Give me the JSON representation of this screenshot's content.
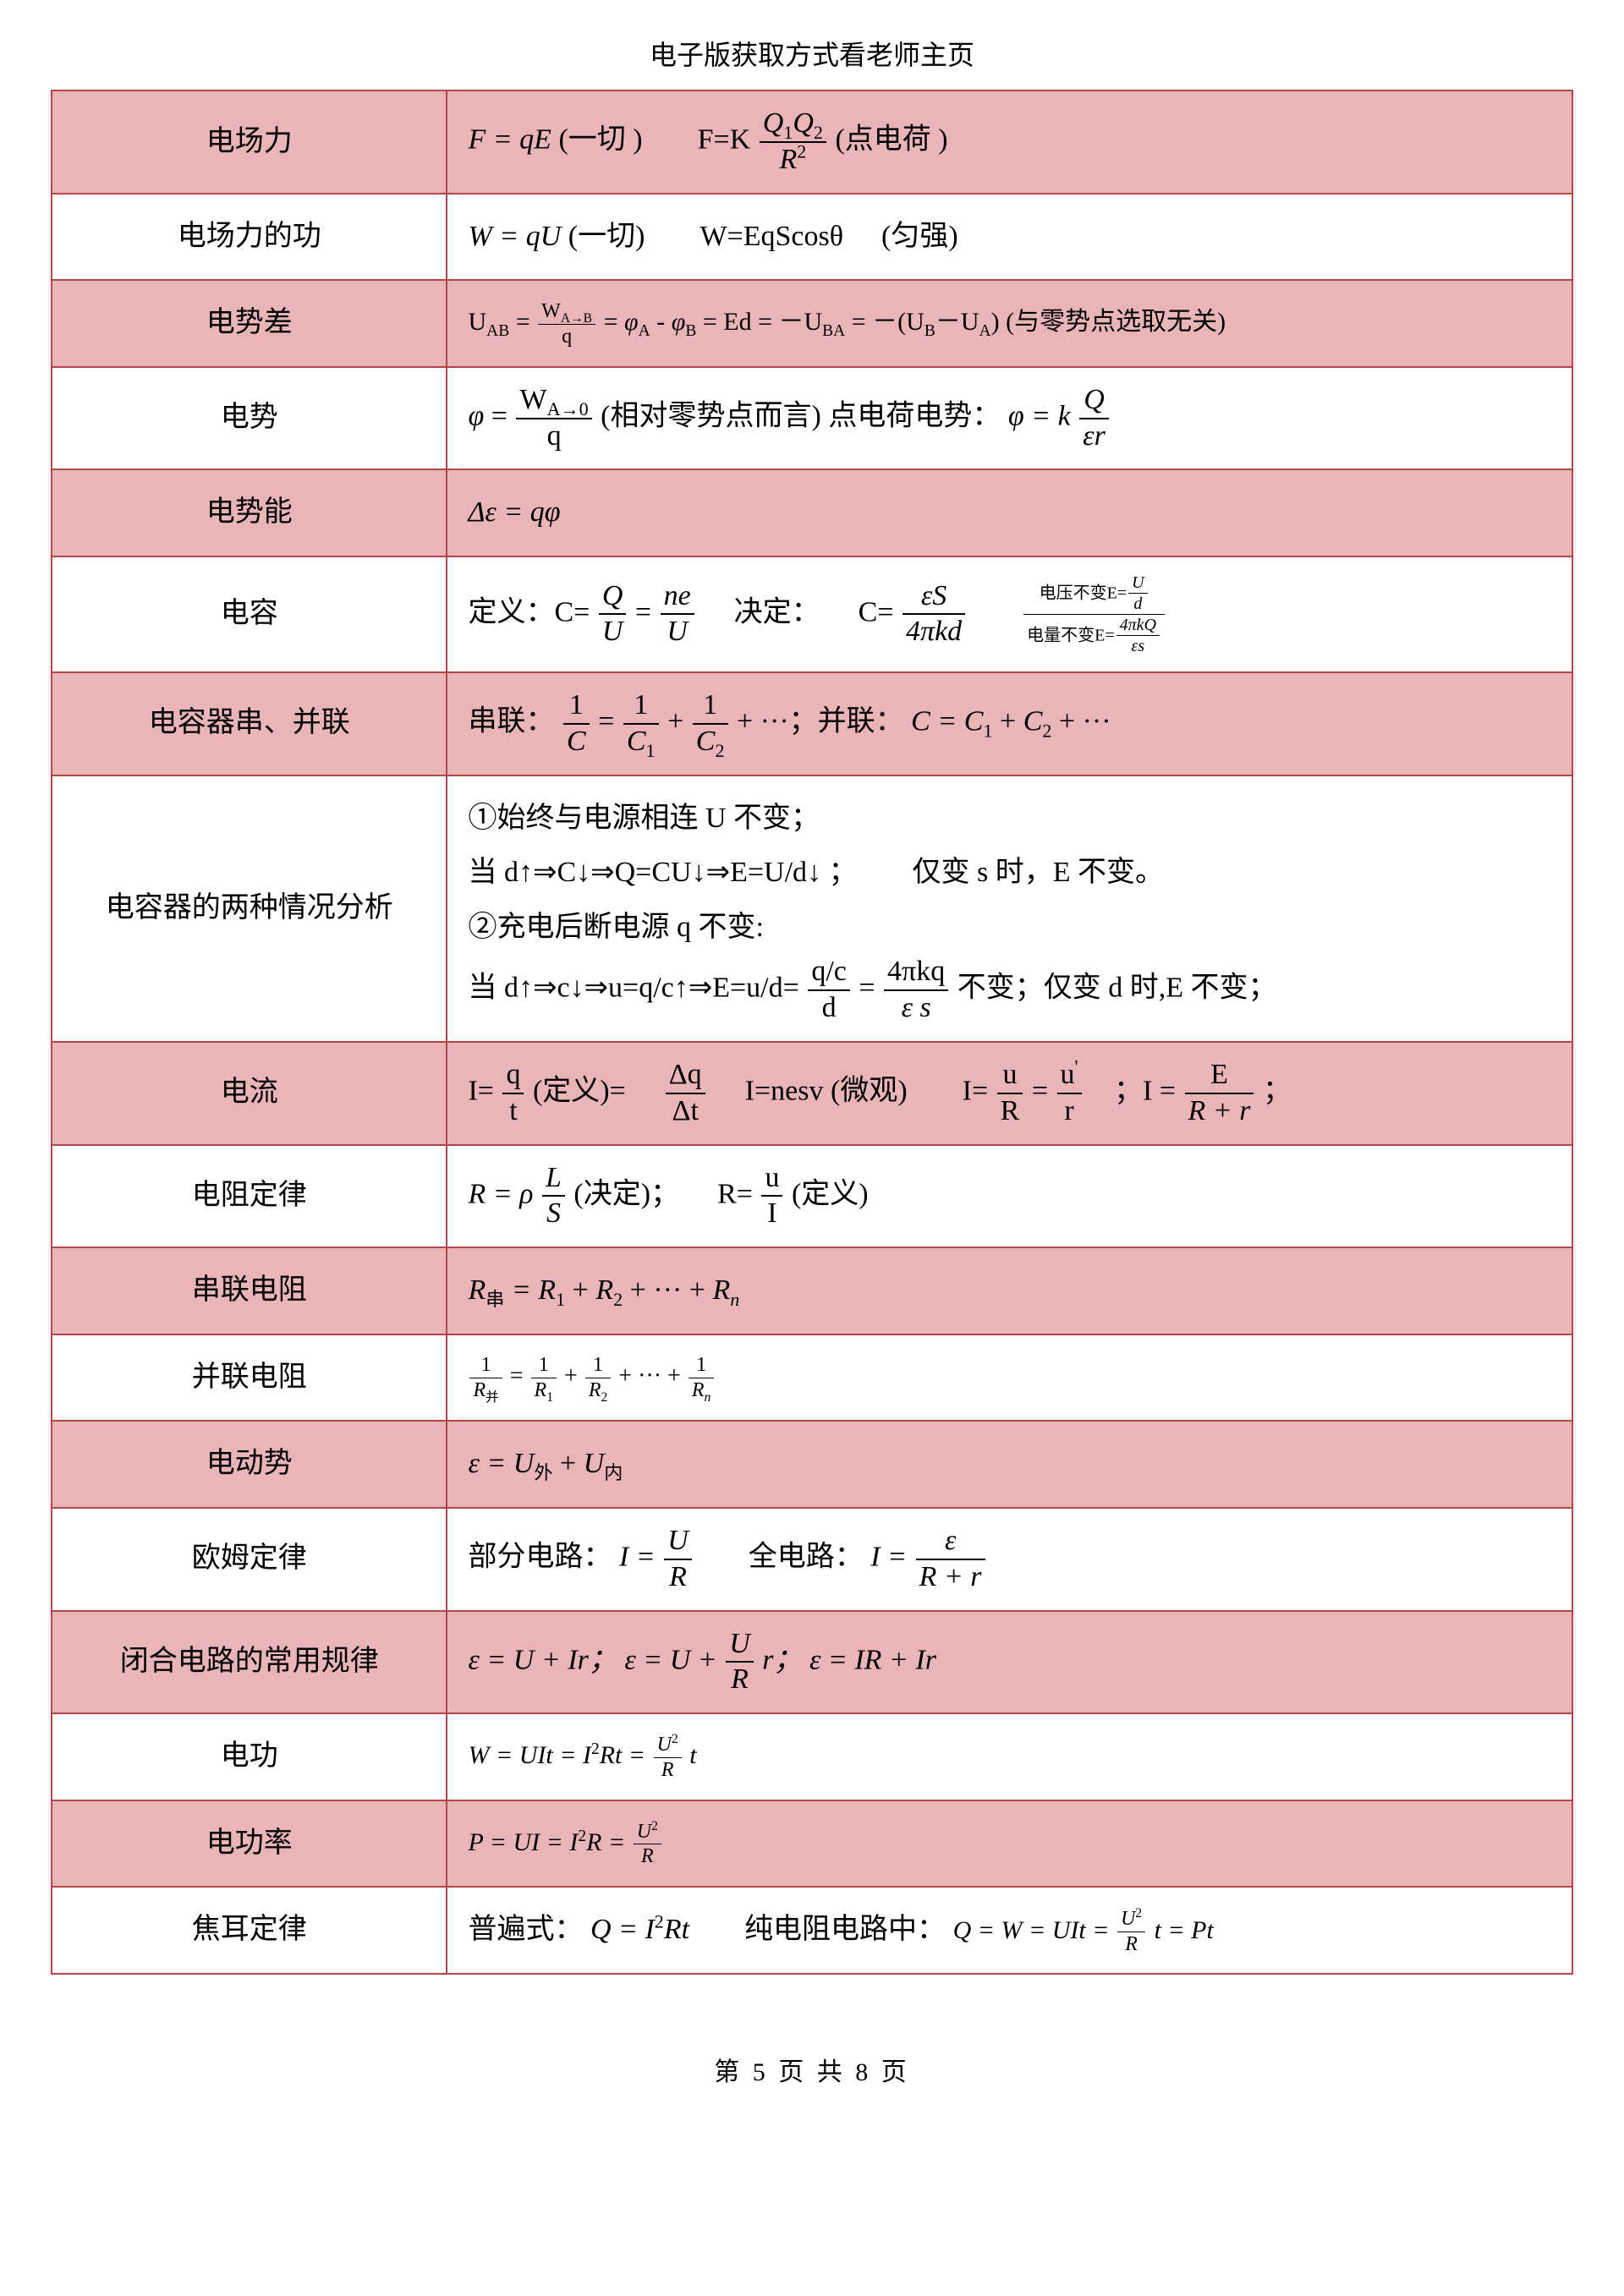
{
  "header_note": "电子版获取方式看老师主页",
  "page_footer": "第 5 页 共 8 页",
  "table": {
    "border_color": "#b1474a",
    "pink_bg": "#e9b5b7",
    "white_bg": "#ffffff",
    "rows": [
      {
        "label": "电场力",
        "shade": "pink"
      },
      {
        "label": "电场力的功",
        "shade": "white"
      },
      {
        "label": "电势差",
        "shade": "pink"
      },
      {
        "label": "电势",
        "shade": "white"
      },
      {
        "label": "电势能",
        "shade": "pink"
      },
      {
        "label": "电容",
        "shade": "white"
      },
      {
        "label": "电容器串、并联",
        "shade": "pink"
      },
      {
        "label": "电容器的两种情况分析",
        "shade": "white"
      },
      {
        "label": "电流",
        "shade": "pink"
      },
      {
        "label": "电阻定律",
        "shade": "white"
      },
      {
        "label": "串联电阻",
        "shade": "pink"
      },
      {
        "label": "并联电阻",
        "shade": "white"
      },
      {
        "label": "电动势",
        "shade": "pink"
      },
      {
        "label": "欧姆定律",
        "shade": "white"
      },
      {
        "label": "闭合电路的常用规律",
        "shade": "pink"
      },
      {
        "label": "电功",
        "shade": "white"
      },
      {
        "label": "电功率",
        "shade": "pink"
      },
      {
        "label": "焦耳定律",
        "shade": "white"
      }
    ]
  },
  "formulas": {
    "dianchangLi_1": "F = qE",
    "dianchangLi_1_note": "(一切  )",
    "dianchangLi_2_prefix": "F=K",
    "dianchangLi_2_num": "Q₁Q₂",
    "dianchangLi_2_den": "R²",
    "dianchangLi_2_note": "(点电荷  )",
    "gong_1": "W = qU",
    "gong_1_note": "(一切)",
    "gong_2": "W=EqScosθ",
    "gong_2_note": "(匀强)",
    "dianshicha_lhs": "U",
    "dianshicha_lhs_sub": "AB",
    "dianshicha_frac_num": "W",
    "dianshicha_frac_num_sub": "A→B",
    "dianshicha_frac_den": "q",
    "dianshicha_mid": "= φ",
    "dianshicha_mid_A": "A",
    "dianshicha_mid_minus": " - φ",
    "dianshicha_mid_B": "B",
    "dianshicha_Ed": " = Ed",
    "dianshicha_rhs1": " = －U",
    "dianshicha_rhs1_sub": "BA",
    "dianshicha_rhs2": " = －(U",
    "dianshicha_rhs2_B": "B",
    "dianshicha_rhs2_mid": "－U",
    "dianshicha_rhs2_A": "A",
    "dianshicha_rhs2_end": ")",
    "dianshicha_note": " (与零势点选取无关)",
    "dianshi_frac_num": "W",
    "dianshi_frac_num_sub": "A→0",
    "dianshi_frac_den": "q",
    "dianshi_note": "(相对零势点而言)  点电荷电势：",
    "dianshi_point_num": "Q",
    "dianshi_point_den": "εr",
    "dianshi_phi": "φ = ",
    "dianshi_k": "k",
    "dianshineng": "Δε = qφ",
    "dianrong_def_label": "定义：C=",
    "dianrong_def1_num": "Q",
    "dianrong_def1_den": "U",
    "dianrong_def2_num": "ne",
    "dianrong_def2_den": "U",
    "dianrong_jueding_label": "决定：",
    "dianrong_jueding_num": "εS",
    "dianrong_jueding_den": "4πkd",
    "dianrong_side1": "电压不变E=",
    "dianrong_side1_num": "U",
    "dianrong_side1_den": "d",
    "dianrong_side2": "电量不变E=",
    "dianrong_side2_num": "4πkQ",
    "dianrong_side2_den": "εs",
    "cap_series_label": "串联：",
    "cap_series_1_num": "1",
    "cap_series_1_den": "C",
    "cap_series_2_num": "1",
    "cap_series_2_den_C1": "C",
    "cap_series_2_den_1": "1",
    "cap_series_3_den_2": "2",
    "cap_series_tail": "+ ···；并联：",
    "cap_parallel": "C = C₁ + C₂ + ···",
    "cap_analysis_line1": "①始终与电源相连 U 不变；",
    "cap_analysis_line2_a": "当 d↑⇒C↓⇒Q=CU↓⇒E=U/d↓  ；",
    "cap_analysis_line2_b": "仅变 s 时，E 不变。",
    "cap_analysis_line3": "②充电后断电源 q 不变:",
    "cap_analysis_line4_a": "当 d↑⇒c↓⇒u=q/c↑⇒E=u/d=",
    "cap_analysis_line4_f1_num": "q/c",
    "cap_analysis_line4_f1_den": "d",
    "cap_analysis_line4_f2_num": "4πkq",
    "cap_analysis_line4_f2_den": "ε s",
    "cap_analysis_line4_b": "不变；仅变 d 时,E 不变；",
    "current_1_num": "q",
    "current_1_den": "t",
    "current_1_note": "(定义)=",
    "current_2_num": "Δq",
    "current_2_den": "Δt",
    "current_3": "I=nesv (微观)",
    "current_4_num": "u",
    "current_4_den": "R",
    "current_5_num": "u'",
    "current_5_den": "r",
    "current_6_num": "E",
    "current_6_den": "R + r",
    "resist_law_1_num": "L",
    "resist_law_1_den": "S",
    "resist_law_1_note": "(决定)；",
    "resist_law_2_num": "u",
    "resist_law_2_den": "I",
    "resist_law_2_note": "(定义)",
    "resist_law_prefix": "R = ρ",
    "resist_law_prefix2": "R=",
    "series_R": "R",
    "series_R_sub": "串",
    "series_R_rhs": " = R₁ + R₂ + ··· + Rₙ",
    "parallel_lhs_num": "1",
    "parallel_lhs_den": "R",
    "parallel_lhs_den_sub": "并",
    "parallel_1": "1",
    "parallel_R1": "R",
    "parallel_tail": "+ ··· +",
    "parallel_Rn": "R",
    "parallel_n": "n",
    "emf": "ε = U",
    "emf_wai": "外",
    "emf_plus": " + U",
    "emf_nei": "内",
    "ohm_part_label": "部分电路：",
    "ohm_part_num": "U",
    "ohm_part_den": "R",
    "ohm_full_label": "全电路：",
    "ohm_full_num": "ε",
    "ohm_full_den": "R + r",
    "closed_1": "ε = U + Ir；",
    "closed_2_prefix": "ε = U +",
    "closed_2_num": "U",
    "closed_2_den": "R",
    "closed_2_suffix": "r；",
    "closed_3": "ε = IR + Ir",
    "work_prefix": "W = UIt = I² Rt =",
    "work_num": "U²",
    "work_den": "R",
    "work_suffix": "t",
    "power_prefix": "P = UI = I² R =",
    "power_num": "U²",
    "power_den": "R",
    "joule_label1": "普遍式：",
    "joule_1": "Q = I² Rt",
    "joule_label2": "纯电阻电路中：",
    "joule_2_prefix": "Q = W = UIt =",
    "joule_2_num": "U²",
    "joule_2_den": "R",
    "joule_2_suffix": "t = Pt"
  }
}
